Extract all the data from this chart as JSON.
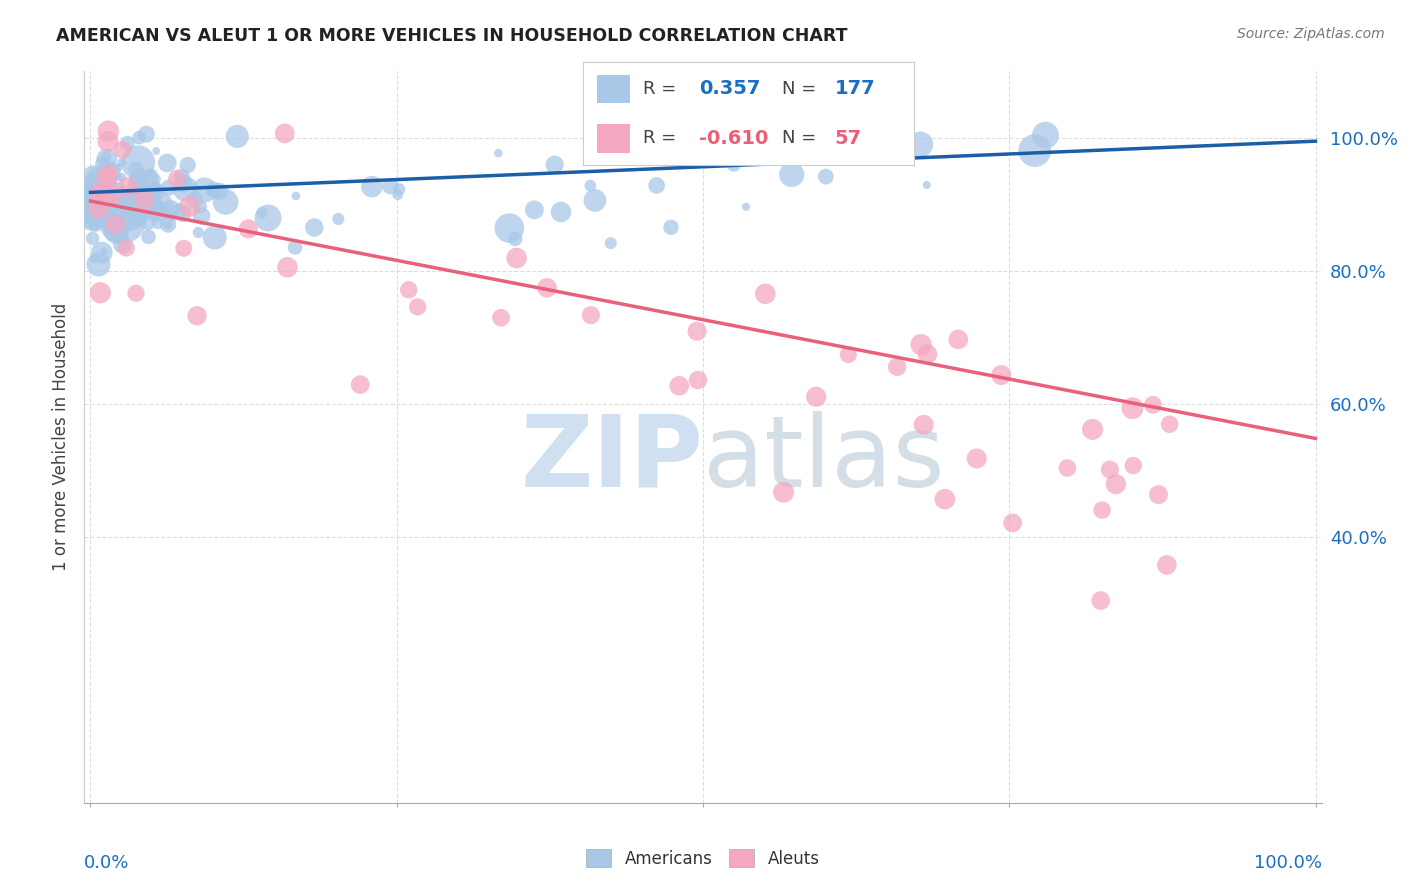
{
  "title": "AMERICAN VS ALEUT 1 OR MORE VEHICLES IN HOUSEHOLD CORRELATION CHART",
  "source": "Source: ZipAtlas.com",
  "ylabel": "1 or more Vehicles in Household",
  "legend_american_R": "0.357",
  "legend_american_N": "177",
  "legend_aleut_R": "-0.610",
  "legend_aleut_N": "57",
  "american_color": "#a8c8e8",
  "aleut_color": "#f4a8c0",
  "american_edge_color": "#88aacc",
  "aleut_edge_color": "#e08090",
  "american_line_color": "#1a5fa8",
  "aleut_line_color": "#e8607a",
  "watermark_color": "#d0e0f0",
  "background_color": "#ffffff",
  "grid_color": "#dddddd",
  "ytick_color": "#1a6fc4",
  "xlabel_color": "#1a6fc4",
  "title_color": "#222222",
  "source_color": "#777777",
  "ylabel_color": "#444444"
}
